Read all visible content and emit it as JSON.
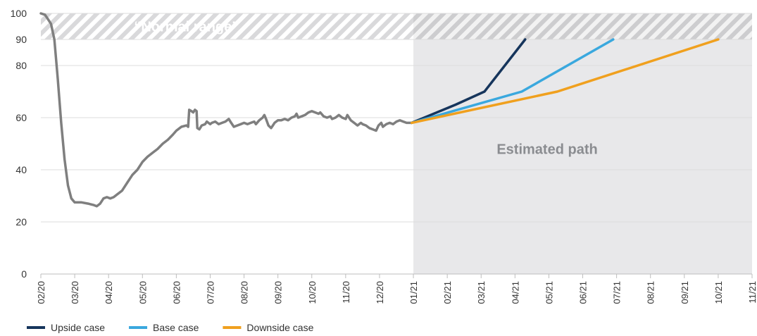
{
  "chart_data": {
    "type": "line",
    "title": "",
    "xlabel": "",
    "ylabel": "",
    "ylim": [
      0,
      100
    ],
    "y_ticks": [
      0,
      20,
      40,
      60,
      80,
      90,
      100
    ],
    "x_tick_labels": [
      "02/20",
      "03/20",
      "04/20",
      "05/20",
      "06/20",
      "07/20",
      "08/20",
      "09/20",
      "10/20",
      "11/20",
      "12/20",
      "01/21",
      "02/21",
      "03/21",
      "04/21",
      "05/21",
      "06/21",
      "07/21",
      "08/21",
      "09/21",
      "10/21",
      "11/21"
    ],
    "grid": "horizontal",
    "legend_position": "bottom-left",
    "annotations": {
      "normal_range": {
        "label": "“Normal range”",
        "from": 90,
        "to": 100
      },
      "estimated_path": {
        "label": "Estimated path",
        "from_month": 11
      }
    },
    "colors": {
      "historical": "#7f7f7f",
      "upside": "#16355c",
      "base": "#3aa8de",
      "downside": "#f0a01e",
      "shade": "#e8e8ea",
      "hatch": "#d6d6d8"
    },
    "series": [
      {
        "key": "historical",
        "name": "",
        "points": [
          [
            0,
            100
          ],
          [
            0.12,
            99.5
          ],
          [
            0.2,
            98
          ],
          [
            0.3,
            96
          ],
          [
            0.4,
            90
          ],
          [
            0.5,
            75
          ],
          [
            0.6,
            58
          ],
          [
            0.7,
            44
          ],
          [
            0.8,
            34
          ],
          [
            0.9,
            29
          ],
          [
            1.0,
            27.5
          ],
          [
            1.2,
            27.5
          ],
          [
            1.4,
            27
          ],
          [
            1.55,
            26.5
          ],
          [
            1.65,
            26
          ],
          [
            1.75,
            27
          ],
          [
            1.85,
            29
          ],
          [
            1.95,
            29.5
          ],
          [
            2.05,
            29
          ],
          [
            2.15,
            29.5
          ],
          [
            2.25,
            30.5
          ],
          [
            2.4,
            32
          ],
          [
            2.55,
            35
          ],
          [
            2.7,
            38
          ],
          [
            2.85,
            40
          ],
          [
            3.0,
            43
          ],
          [
            3.15,
            45
          ],
          [
            3.3,
            46.5
          ],
          [
            3.45,
            48
          ],
          [
            3.6,
            50
          ],
          [
            3.75,
            51.5
          ],
          [
            3.9,
            53.5
          ],
          [
            4.0,
            55
          ],
          [
            4.15,
            56.5
          ],
          [
            4.3,
            57
          ],
          [
            4.35,
            56.5
          ],
          [
            4.38,
            63
          ],
          [
            4.45,
            62.5
          ],
          [
            4.5,
            62
          ],
          [
            4.55,
            63
          ],
          [
            4.6,
            62.5
          ],
          [
            4.62,
            56
          ],
          [
            4.68,
            55.5
          ],
          [
            4.75,
            57
          ],
          [
            4.85,
            57.5
          ],
          [
            4.9,
            58.5
          ],
          [
            5.0,
            57.5
          ],
          [
            5.05,
            58
          ],
          [
            5.15,
            58.5
          ],
          [
            5.25,
            57.5
          ],
          [
            5.35,
            58
          ],
          [
            5.45,
            58.5
          ],
          [
            5.55,
            59.5
          ],
          [
            5.62,
            58
          ],
          [
            5.7,
            56.5
          ],
          [
            5.8,
            57
          ],
          [
            5.9,
            57.5
          ],
          [
            6.0,
            58
          ],
          [
            6.1,
            57.5
          ],
          [
            6.2,
            58
          ],
          [
            6.3,
            58.5
          ],
          [
            6.35,
            57.5
          ],
          [
            6.45,
            59
          ],
          [
            6.55,
            60
          ],
          [
            6.6,
            61
          ],
          [
            6.65,
            59.5
          ],
          [
            6.72,
            57
          ],
          [
            6.8,
            56
          ],
          [
            6.85,
            57
          ],
          [
            6.9,
            58
          ],
          [
            7.0,
            59
          ],
          [
            7.1,
            59
          ],
          [
            7.2,
            59.5
          ],
          [
            7.3,
            59
          ],
          [
            7.4,
            60
          ],
          [
            7.5,
            60.5
          ],
          [
            7.55,
            61.5
          ],
          [
            7.6,
            60
          ],
          [
            7.7,
            60.5
          ],
          [
            7.8,
            61
          ],
          [
            7.9,
            62
          ],
          [
            8.0,
            62.5
          ],
          [
            8.1,
            62
          ],
          [
            8.2,
            61.5
          ],
          [
            8.25,
            62
          ],
          [
            8.35,
            60.5
          ],
          [
            8.45,
            60
          ],
          [
            8.55,
            60.5
          ],
          [
            8.6,
            59.5
          ],
          [
            8.7,
            60
          ],
          [
            8.8,
            61
          ],
          [
            8.9,
            60
          ],
          [
            9.0,
            59.5
          ],
          [
            9.05,
            61
          ],
          [
            9.15,
            59
          ],
          [
            9.25,
            58
          ],
          [
            9.35,
            57
          ],
          [
            9.45,
            58
          ],
          [
            9.5,
            57.5
          ],
          [
            9.6,
            57
          ],
          [
            9.7,
            56
          ],
          [
            9.8,
            55.5
          ],
          [
            9.9,
            55
          ],
          [
            9.97,
            57
          ],
          [
            10.05,
            58
          ],
          [
            10.1,
            56.5
          ],
          [
            10.2,
            57.5
          ],
          [
            10.3,
            58
          ],
          [
            10.4,
            57.5
          ],
          [
            10.5,
            58.5
          ],
          [
            10.6,
            59
          ],
          [
            10.7,
            58.5
          ],
          [
            10.8,
            58
          ],
          [
            10.95,
            58
          ]
        ]
      },
      {
        "key": "upside",
        "name": "Upside case",
        "points": [
          [
            10.95,
            58
          ],
          [
            12.25,
            65
          ],
          [
            13.1,
            70
          ],
          [
            14.3,
            90
          ]
        ]
      },
      {
        "key": "base",
        "name": "Base case",
        "points": [
          [
            10.95,
            58
          ],
          [
            14.2,
            70
          ],
          [
            16.9,
            90
          ]
        ]
      },
      {
        "key": "downside",
        "name": "Downside case",
        "points": [
          [
            10.95,
            58
          ],
          [
            15.25,
            70
          ],
          [
            20,
            90
          ]
        ]
      }
    ]
  }
}
